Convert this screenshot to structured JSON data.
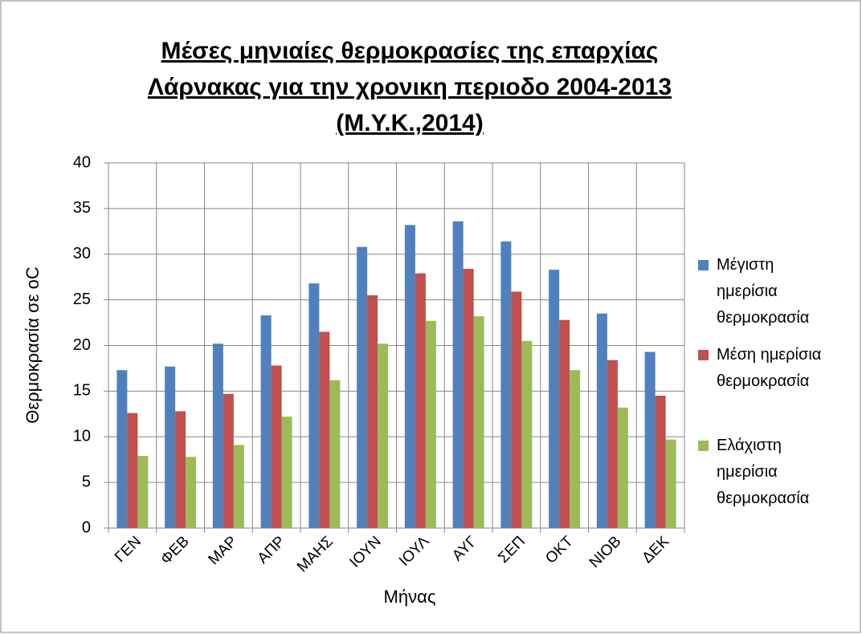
{
  "chart_data": {
    "type": "bar",
    "title": [
      "Μέσες μηνιαίες θερμοκρασίες της επαρχίας",
      "Λάρνακας για την χρονικη περιοδο 2004-2013",
      "(Μ.Υ.Κ.,2014)"
    ],
    "x_label": "Μήνας",
    "y_label": "Θερμοκρασία σε oC",
    "categories": [
      "ΓΕΝ",
      "ΦΕΒ",
      "ΜΑΡ",
      "ΑΠΡ",
      "ΜΑΗΣ",
      "ΙΟΥΝ",
      "ΙΟΥΛ",
      "ΑΥΓ",
      "ΣΕΠ",
      "ΟΚΤ",
      "ΝΙΟΒ",
      "ΔΕΚ"
    ],
    "series": [
      {
        "name": "Μέγιστη ημερίσια θερμοκρασία",
        "color": "#4f81bd",
        "values": [
          17.3,
          17.7,
          20.2,
          23.3,
          26.8,
          30.8,
          33.2,
          33.6,
          31.4,
          28.3,
          23.5,
          19.3
        ]
      },
      {
        "name": "Μέση ημερίσια θερμοκρασία",
        "color": "#c0504d",
        "values": [
          12.6,
          12.8,
          14.7,
          17.8,
          21.5,
          25.5,
          27.9,
          28.4,
          25.9,
          22.8,
          18.4,
          14.5
        ]
      },
      {
        "name": "Ελάχιστη ημερίσια θερμοκρασία",
        "color": "#9bbb59",
        "values": [
          7.9,
          7.8,
          9.1,
          12.2,
          16.2,
          20.2,
          22.7,
          23.2,
          20.5,
          17.3,
          13.2,
          9.7
        ]
      }
    ],
    "ylim": [
      0,
      40
    ],
    "yticks": [
      0,
      5,
      10,
      15,
      20,
      25,
      30,
      35,
      40
    ],
    "grid": true,
    "legend": "right"
  }
}
